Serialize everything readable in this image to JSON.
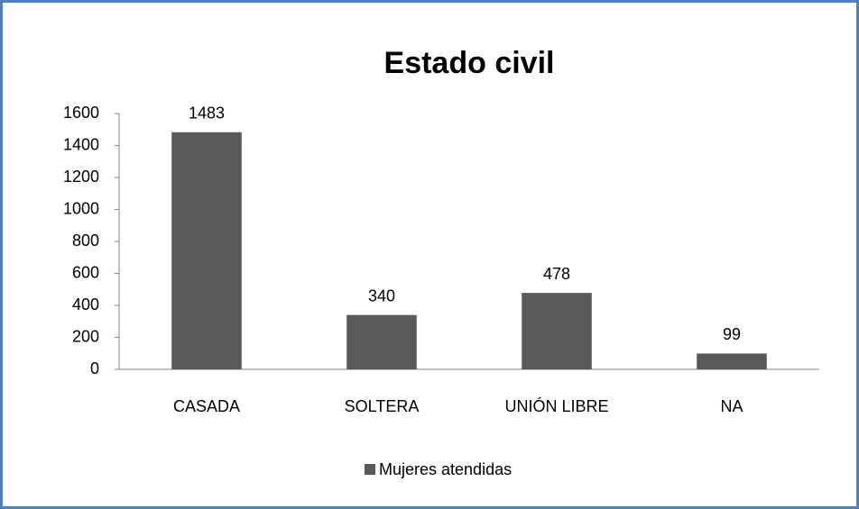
{
  "chart_data": {
    "type": "bar",
    "title": "Estado civil",
    "categories": [
      "CASADA",
      "SOLTERA",
      "UNIÓN LIBRE",
      "NA"
    ],
    "series": [
      {
        "name": "Mujeres atendidas",
        "color": "#595959",
        "values": [
          1483,
          340,
          478,
          99
        ]
      }
    ],
    "ylim": [
      0,
      1600
    ],
    "yticks": [
      0,
      200,
      400,
      600,
      800,
      1000,
      1200,
      1400,
      1600
    ],
    "grid": false,
    "legend": "bottom",
    "data_labels": true
  }
}
